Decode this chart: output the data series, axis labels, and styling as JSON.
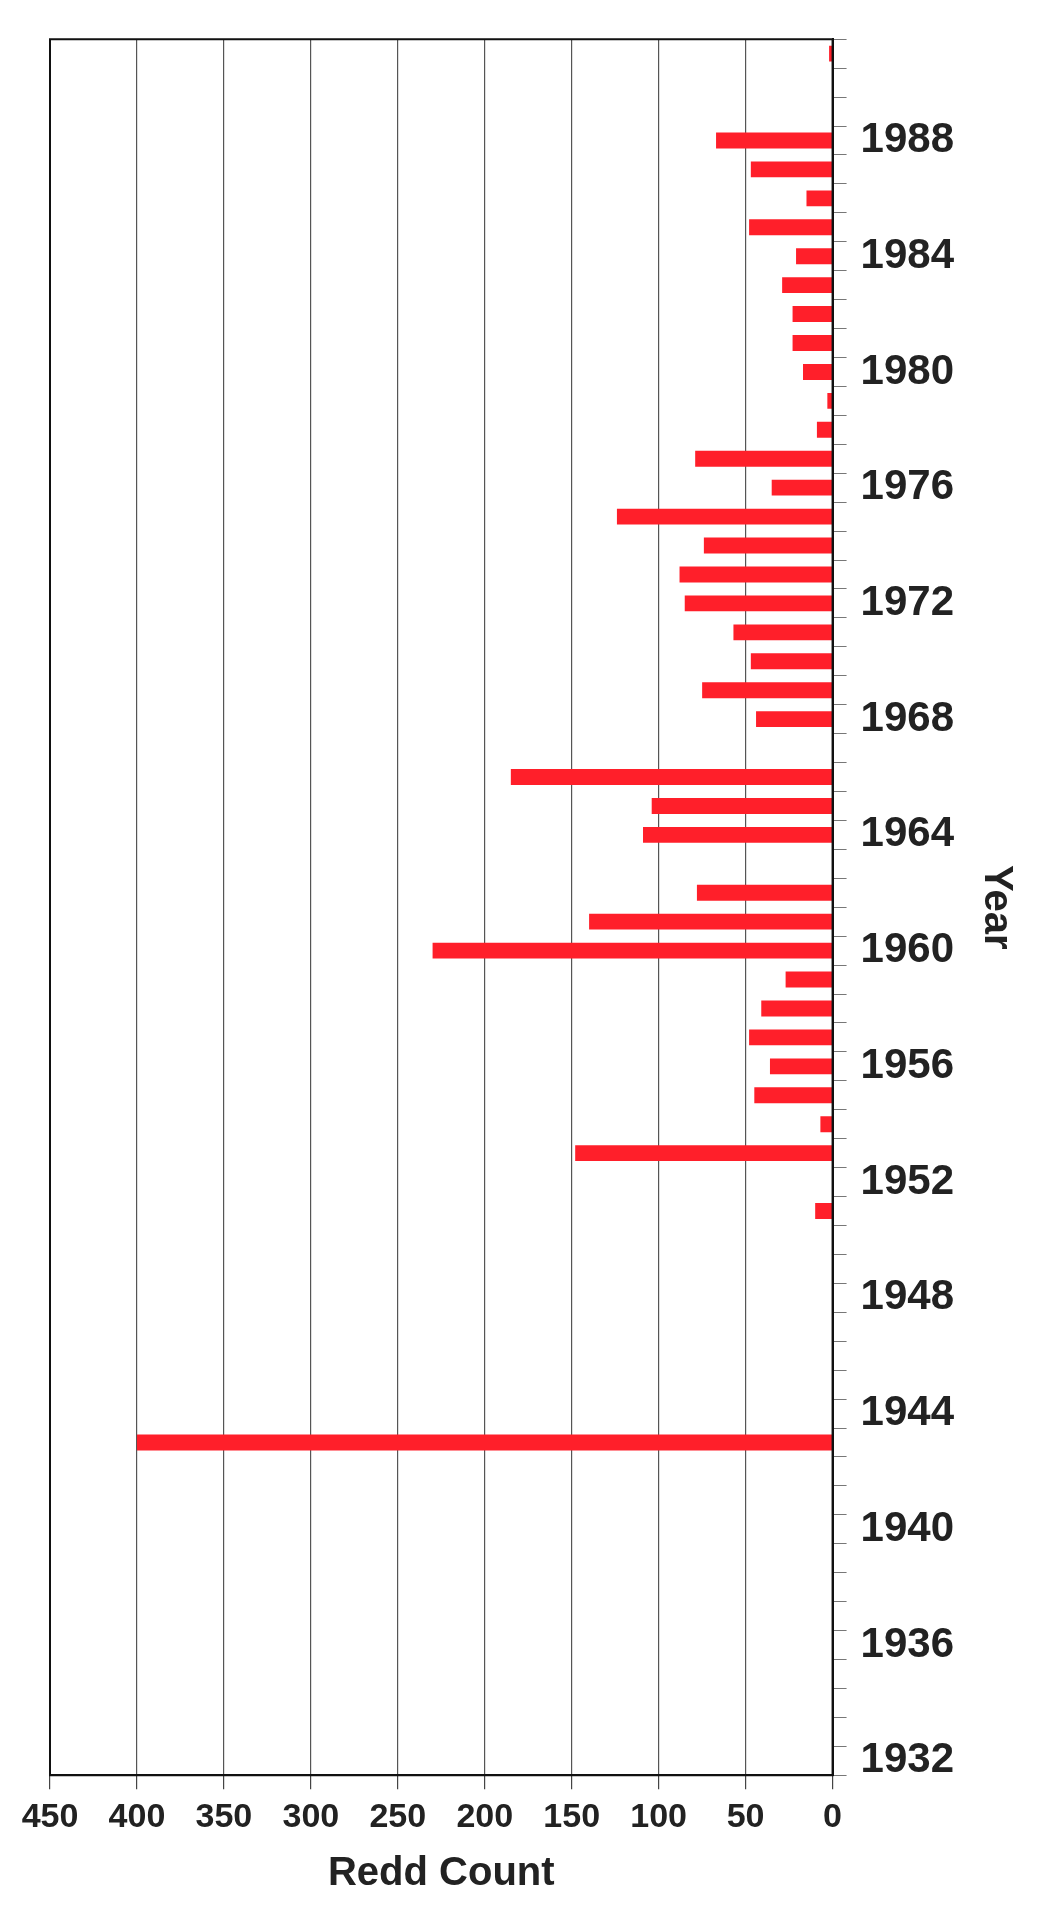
{
  "chart_data": {
    "type": "bar",
    "orientation": "horizontal",
    "xlabel": "Redd Count",
    "ylabel": "Year",
    "categories": [
      null,
      null,
      null,
      "1988",
      null,
      null,
      null,
      "1984",
      null,
      null,
      null,
      "1980",
      null,
      null,
      null,
      "1976",
      null,
      null,
      null,
      "1972",
      null,
      null,
      null,
      "1968",
      null,
      null,
      null,
      "1964",
      null,
      null,
      null,
      "1960",
      null,
      null,
      null,
      "1956",
      null,
      null,
      null,
      "1952",
      null,
      null,
      null,
      "1948",
      null,
      null,
      null,
      "1944",
      null,
      null,
      null,
      "1940",
      null,
      null,
      null,
      "1936",
      null,
      null,
      null,
      "1932"
    ],
    "values": [
      2,
      null,
      null,
      67,
      47,
      15,
      48,
      21,
      29,
      23,
      23,
      17,
      3,
      9,
      79,
      35,
      124,
      74,
      88,
      85,
      57,
      47,
      75,
      44,
      null,
      185,
      104,
      109,
      null,
      78,
      140,
      230,
      27,
      41,
      48,
      36,
      45,
      7,
      148,
      null,
      10,
      null,
      null,
      null,
      null,
      null,
      null,
      null,
      400,
      null,
      null,
      null,
      null,
      null,
      null,
      null,
      null,
      null,
      null,
      null
    ],
    "color": "#ff1f2a",
    "xlim": [
      450,
      0
    ],
    "xticks": [
      0,
      50,
      100,
      150,
      200,
      250,
      300,
      350,
      400,
      450
    ],
    "grid": "x"
  }
}
